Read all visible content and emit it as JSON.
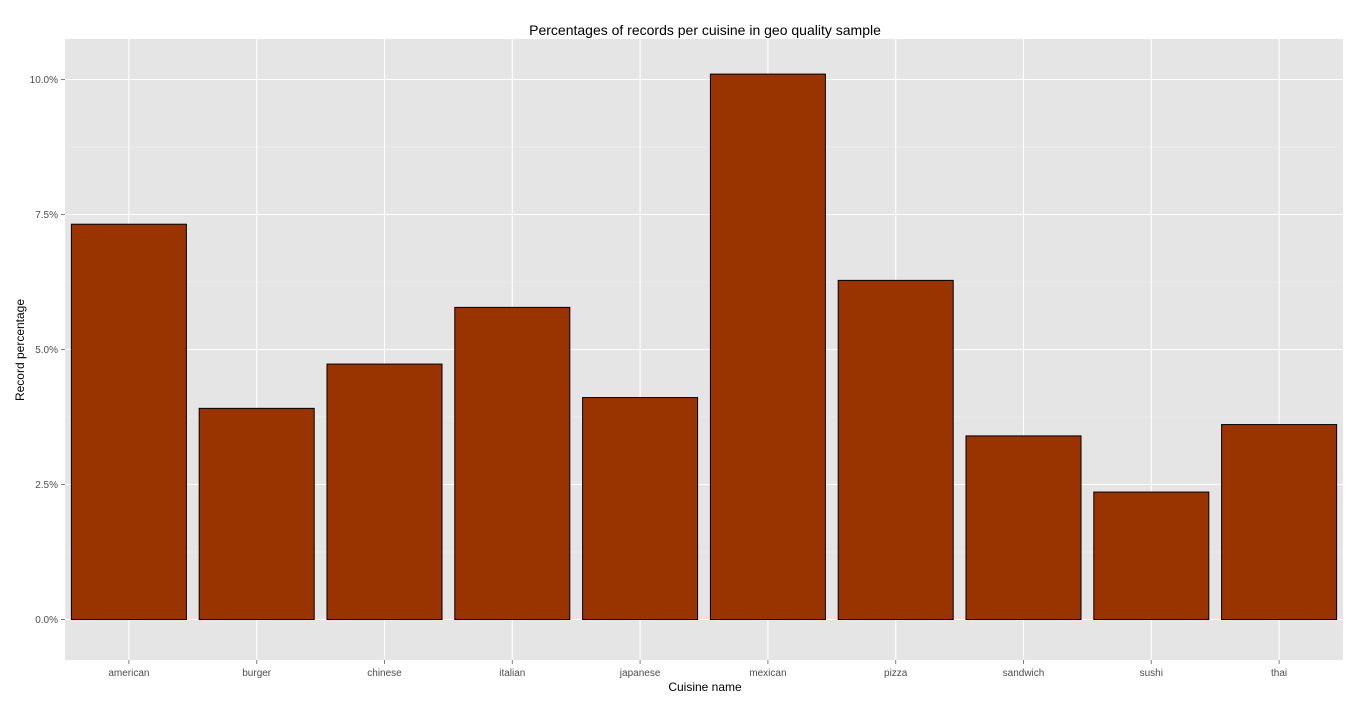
{
  "chart_data": {
    "type": "bar",
    "title": "Percentages of records per cuisine in geo quality sample",
    "xlabel": "Cuisine name",
    "ylabel": "Record percentage",
    "categories": [
      "american",
      "burger",
      "chinese",
      "italian",
      "japanese",
      "mexican",
      "pizza",
      "sandwich",
      "sushi",
      "thai"
    ],
    "values": [
      7.32,
      3.91,
      4.73,
      5.78,
      4.11,
      10.1,
      6.28,
      3.4,
      2.36,
      3.61
    ],
    "ylim": [
      -0.75,
      10.75
    ],
    "yticks": [
      0,
      2.5,
      5,
      7.5,
      10
    ],
    "ytick_labels": [
      "0.0%",
      "2.5%",
      "5.0%",
      "7.5%",
      "10.0%"
    ],
    "grid": true,
    "colors": {
      "bar_fill": "#993300",
      "bar_outline": "#000000",
      "panel_background": "#e5e5e5",
      "grid_major": "#ffffff",
      "grid_minor": "#f2f2f2"
    }
  }
}
